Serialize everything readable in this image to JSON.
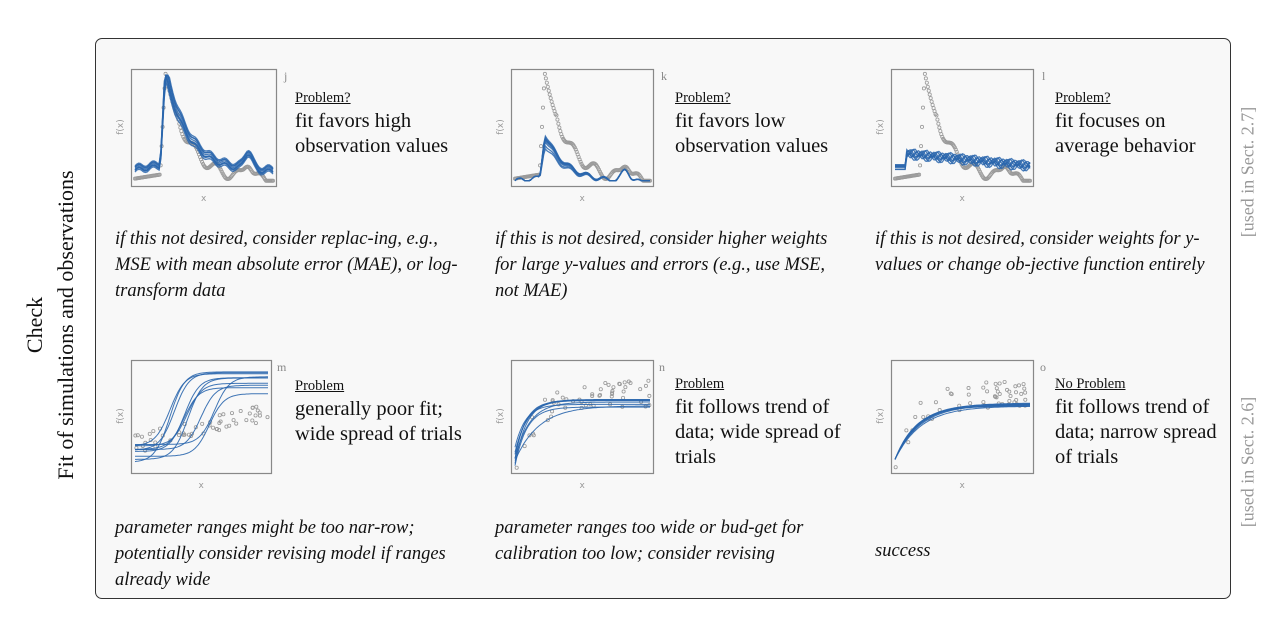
{
  "side_labels": {
    "check": "Check",
    "fit": "Fit of simulations and observations"
  },
  "sect_labels": [
    "[used in Sect. 2.7]",
    "[used in Sect. 2.6]"
  ],
  "axis_labels": {
    "x": "x",
    "y": "f(x)"
  },
  "colors": {
    "fit": "#2a66ad",
    "obs": "#9a9a9a",
    "frame": "#f8f8f8"
  },
  "panels": [
    {
      "tag": "j",
      "heading": "Problem?",
      "body": "fit favors high observation values",
      "caption": "if this not desired, consider replac-ing, e.g., MSE with mean absolute error (MAE), or log-transform data",
      "kind": "peak-high"
    },
    {
      "tag": "k",
      "heading": "Problem?",
      "body": "fit favors low observation values",
      "caption": "if this is not desired, consider higher weights for large y-values and errors (e.g., use MSE, not MAE)",
      "kind": "peak-low"
    },
    {
      "tag": "l",
      "heading": "Problem?",
      "body": "fit focuses on average behavior",
      "caption": "if this is not desired, consider weights for y-values or change ob-jective function entirely",
      "kind": "peak-avg"
    },
    {
      "tag": "m",
      "heading": "Problem",
      "body": "generally poor fit; wide spread of trials",
      "caption": "parameter ranges might be too nar-row; potentially consider revising model if ranges already wide",
      "kind": "sigmoid-poor"
    },
    {
      "tag": "n",
      "heading": "Problem",
      "body": "fit follows trend of data; wide spread of trials",
      "caption": "parameter ranges too wide or bud-get for calibration too low; consider revising",
      "kind": "sat-wide"
    },
    {
      "tag": "o",
      "heading": "No Problem",
      "body": "fit follows trend of data; narrow spread of trials",
      "caption": "success",
      "kind": "sat-narrow"
    }
  ]
}
